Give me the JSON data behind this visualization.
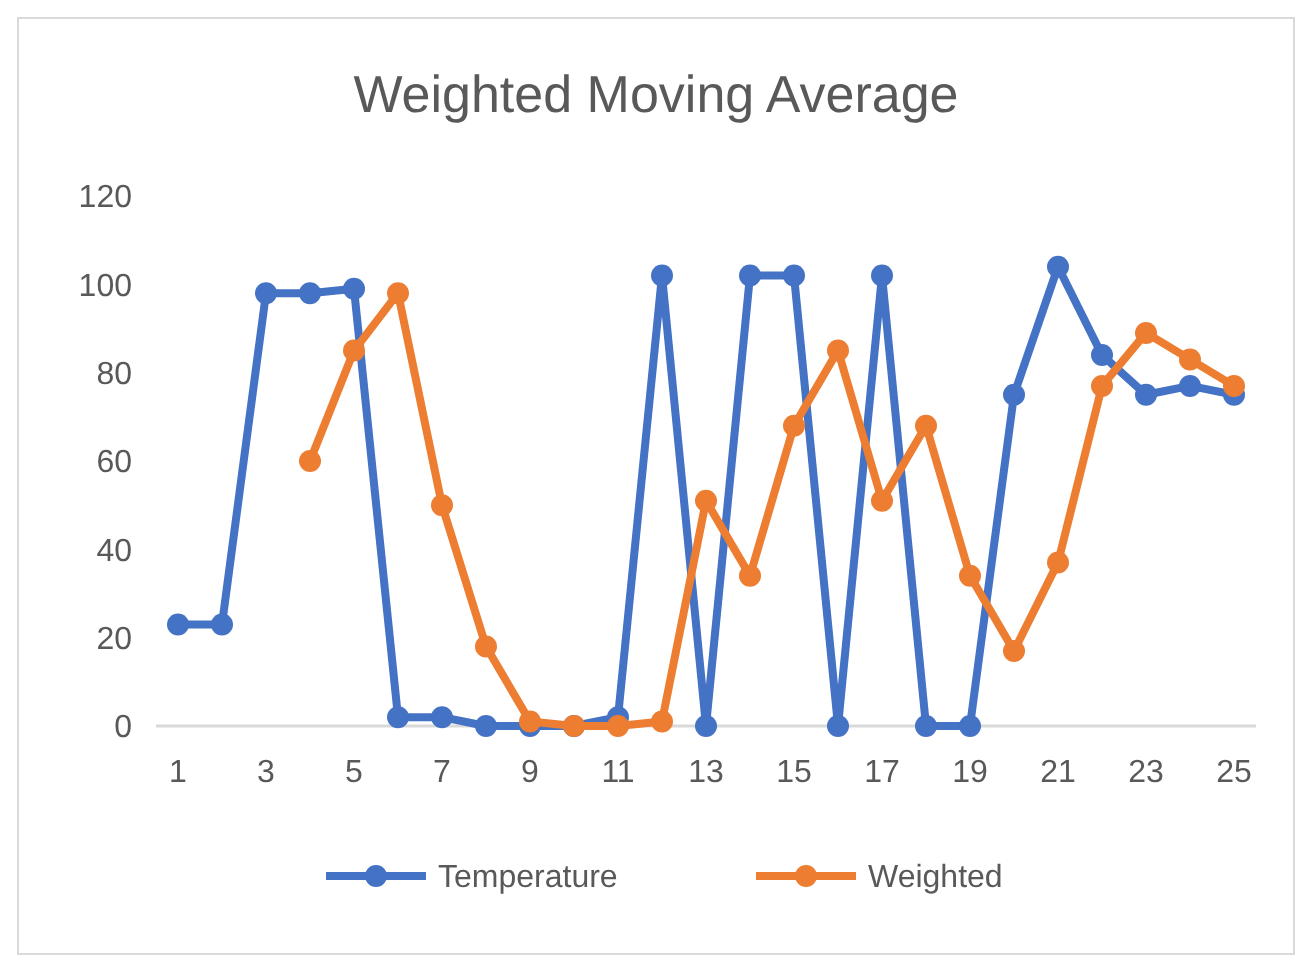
{
  "chart_data": {
    "type": "line",
    "title": "Weighted Moving Average",
    "x": [
      1,
      2,
      3,
      4,
      5,
      6,
      7,
      8,
      9,
      10,
      11,
      12,
      13,
      14,
      15,
      16,
      17,
      18,
      19,
      20,
      21,
      22,
      23,
      24,
      25
    ],
    "xlim": [
      0.5,
      25.5
    ],
    "xticks": [
      1,
      3,
      5,
      7,
      9,
      11,
      13,
      15,
      17,
      19,
      21,
      23,
      25
    ],
    "series": [
      {
        "name": "Temperature",
        "color": "#4472c4",
        "values": [
          23,
          23,
          98,
          98,
          99,
          2,
          2,
          0,
          0,
          0,
          2,
          102,
          0,
          102,
          102,
          0,
          102,
          0,
          0,
          75,
          104,
          84,
          75,
          77,
          75
        ]
      },
      {
        "name": "Weighted",
        "color": "#ed7d31",
        "values": [
          null,
          null,
          null,
          60,
          85,
          98,
          50,
          18,
          1,
          0,
          0,
          1,
          51,
          34,
          68,
          85,
          51,
          68,
          34,
          17,
          37,
          77,
          89,
          83,
          77
        ]
      }
    ],
    "ylim": [
      0,
      120
    ],
    "yticks": [
      0,
      20,
      40,
      60,
      80,
      100,
      120
    ],
    "grid": false,
    "legend": "bottom",
    "marker": "circle",
    "line_style": "solid"
  }
}
